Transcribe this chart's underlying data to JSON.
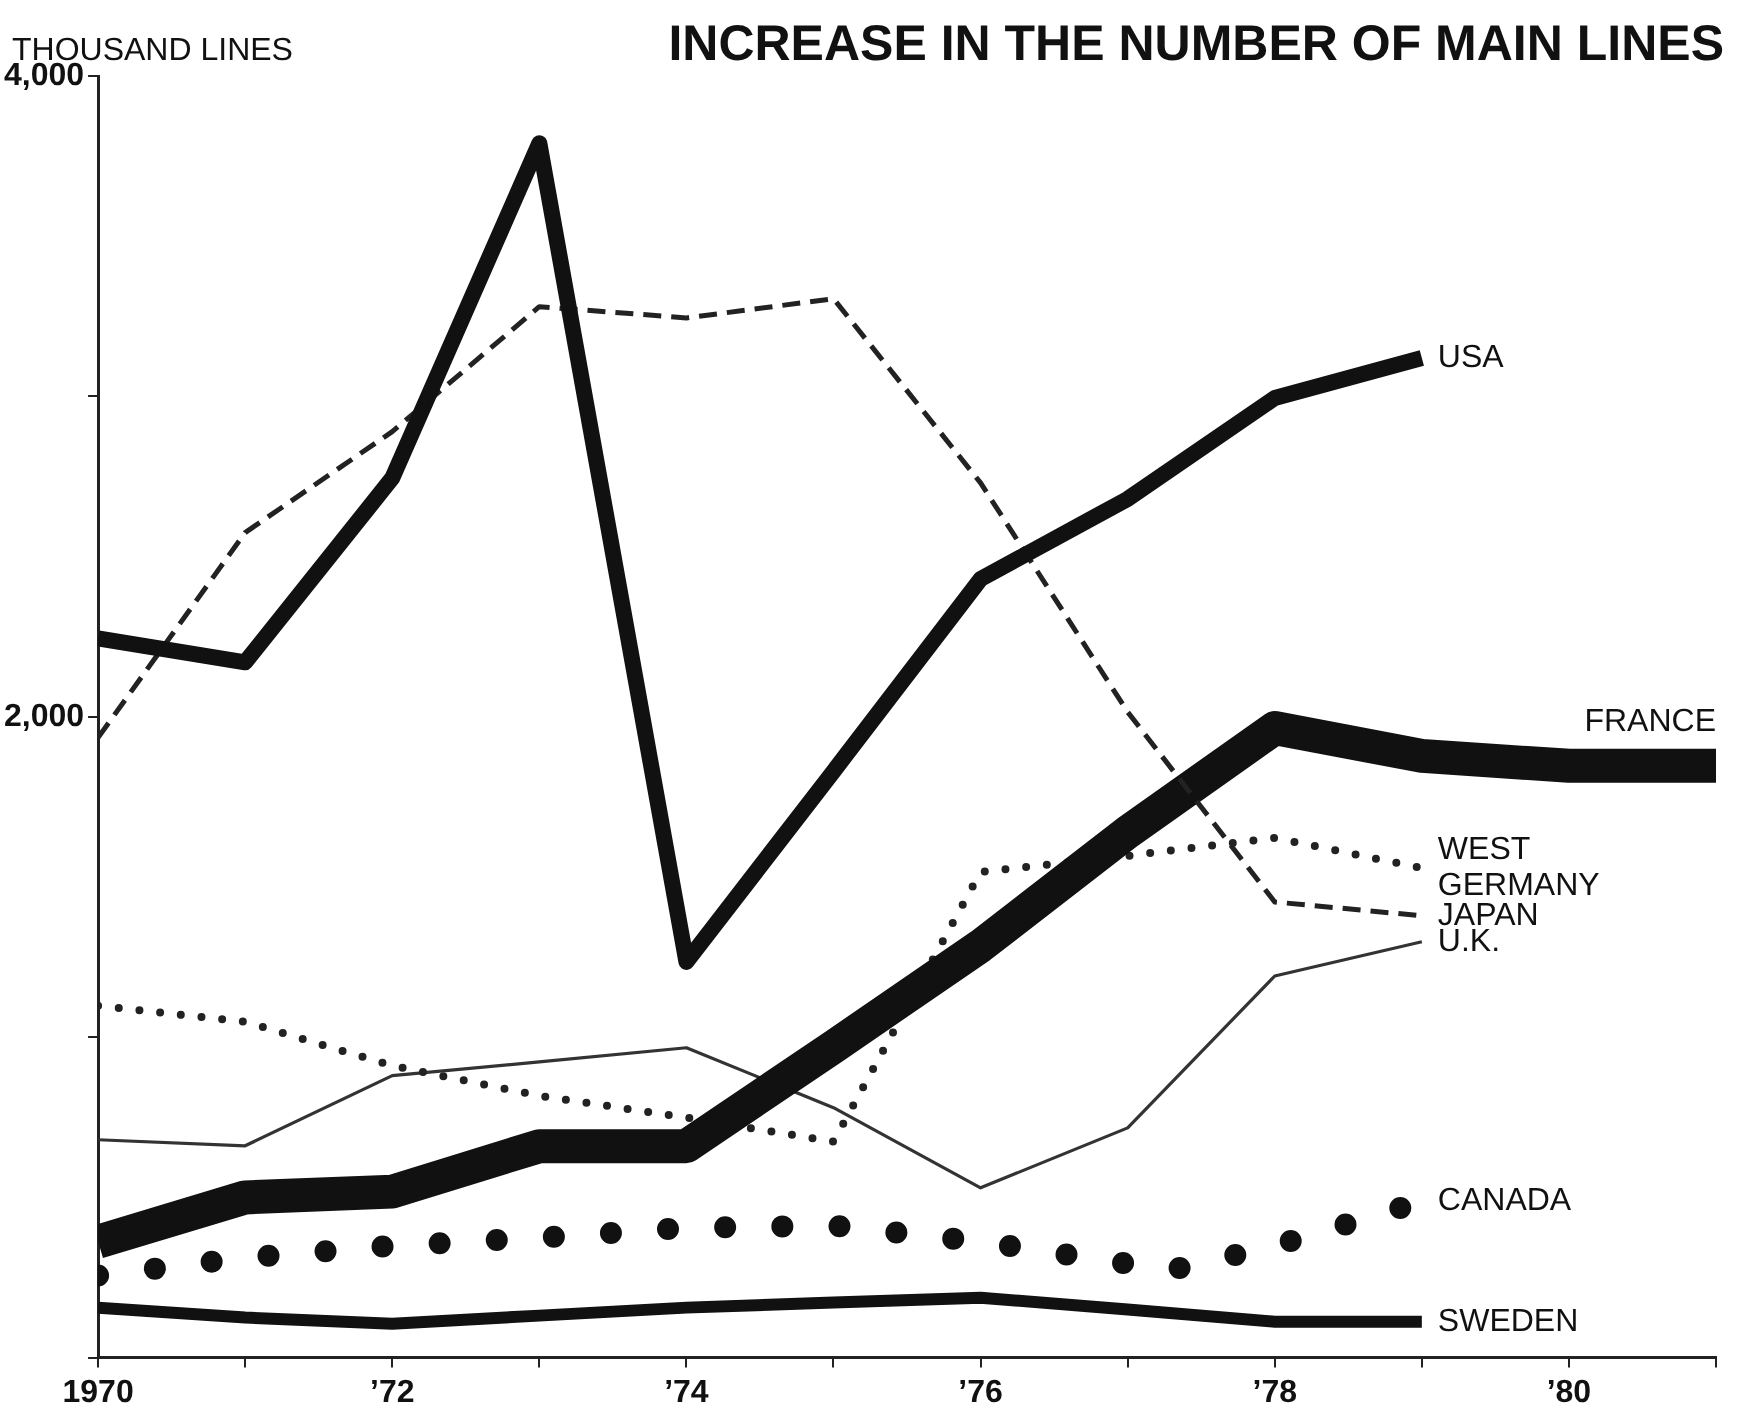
{
  "chart_data": {
    "type": "line",
    "title": "INCREASE IN THE NUMBER OF MAIN LINES",
    "ylabel": "THOUSAND LINES",
    "x": [
      1970,
      1971,
      1972,
      1973,
      1974,
      1975,
      1976,
      1977,
      1978,
      1979
    ],
    "series": [
      {
        "name": "USA",
        "color": "#111111",
        "line_style": "solid",
        "values": [
          2245,
          2170,
          2745,
          3790,
          1235,
          1830,
          2430,
          2680,
          2995,
          3120
        ]
      },
      {
        "name": "JAPAN",
        "color": "#222222",
        "line_style": "dashed",
        "values": [
          1935,
          2575,
          2890,
          3280,
          3245,
          3305,
          2730,
          2015,
          1422,
          1379
        ]
      },
      {
        "name": "FRANCE",
        "color": "#111111",
        "line_style": "solid",
        "x": [
          1970,
          1971,
          1972,
          1973,
          1974,
          1975,
          1976,
          1977,
          1978,
          1979,
          1980,
          1981
        ],
        "values": [
          362,
          500,
          518,
          660,
          660,
          970,
          1285,
          1640,
          1965,
          1878,
          1847,
          1847
        ]
      },
      {
        "name": "WEST GERMANY",
        "color": "#222222",
        "line_style": "dotted",
        "values": [
          1098,
          1048,
          911,
          817,
          749,
          674,
          1516,
          1566,
          1622,
          1528
        ]
      },
      {
        "name": "U.K.",
        "color": "#333333",
        "line_style": "solid",
        "values": [
          680,
          661,
          880,
          923,
          967,
          780,
          530,
          717,
          1191,
          1298
        ]
      },
      {
        "name": "CANADA",
        "color": "#111111",
        "line_style": "dotted",
        "x": [
          1970,
          1971,
          1972,
          1973,
          1974,
          1975,
          1976,
          1977,
          1977.3,
          1978,
          1979
        ],
        "values": [
          256,
          312,
          349,
          374,
          405,
          412,
          362,
          293,
          274,
          349,
          487
        ]
      },
      {
        "name": "SWEDEN",
        "color": "#111111",
        "line_style": "solid",
        "values": [
          156,
          125,
          106,
          131,
          156,
          172,
          187,
          150,
          112,
          112
        ]
      }
    ],
    "xlim": [
      1970,
      1981
    ],
    "xticks": [
      {
        "value": 1970,
        "label": "1970"
      },
      {
        "value": 1971,
        "label": null
      },
      {
        "value": 1972,
        "label": "’72"
      },
      {
        "value": 1973,
        "label": null
      },
      {
        "value": 1974,
        "label": "’74"
      },
      {
        "value": 1975,
        "label": null
      },
      {
        "value": 1976,
        "label": "’76"
      },
      {
        "value": 1977,
        "label": null
      },
      {
        "value": 1978,
        "label": "’78"
      },
      {
        "value": 1979,
        "label": null
      },
      {
        "value": 1980,
        "label": "’80"
      },
      {
        "value": 1981,
        "label": null
      }
    ],
    "ylim": [
      0,
      4000
    ],
    "yticks": [
      {
        "value": 0,
        "label": null
      },
      {
        "value": 1000,
        "label": null
      },
      {
        "value": 2000,
        "label": "2,000"
      },
      {
        "value": 3000,
        "label": null
      },
      {
        "value": 4000,
        "label": "4,000"
      }
    ],
    "grid": false,
    "legend": false
  }
}
